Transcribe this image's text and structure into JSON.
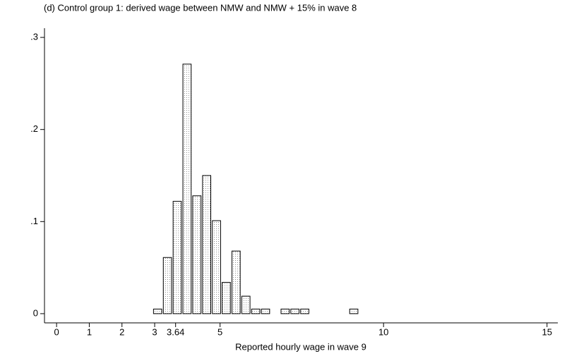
{
  "chart_data": {
    "type": "histogram",
    "title": "(d) Control group 1: derived wage between NMW and NMW + 15% in wave 8",
    "x_label": "Reported hourly wage in wave 9",
    "bins": [
      2.94,
      3.24,
      3.54,
      3.84,
      4.14,
      4.44,
      4.74,
      5.04,
      5.34,
      5.64,
      5.94,
      6.24,
      6.54,
      6.84,
      7.14,
      7.44,
      7.74,
      8.04,
      8.34,
      8.64,
      8.94,
      9.24
    ],
    "values": [
      0.005,
      0.061,
      0.122,
      0.271,
      0.128,
      0.15,
      0.101,
      0.034,
      0.068,
      0.019,
      0.005,
      0.005,
      0,
      0.005,
      0.005,
      0.005,
      0,
      0,
      0,
      0,
      0.005
    ],
    "color": "#d9d9d9",
    "xlim": [
      -0.37,
      15.33
    ],
    "ylim": [
      -0.01,
      0.31
    ],
    "xticks": [
      0,
      1,
      2,
      3,
      3.64,
      5,
      10,
      15
    ],
    "yticks": [
      0,
      {
        "value": 0.1,
        "label": ".1"
      },
      {
        "value": 0.2,
        "label": ".2"
      },
      {
        "value": 0.3,
        "label": ".3"
      }
    ]
  }
}
